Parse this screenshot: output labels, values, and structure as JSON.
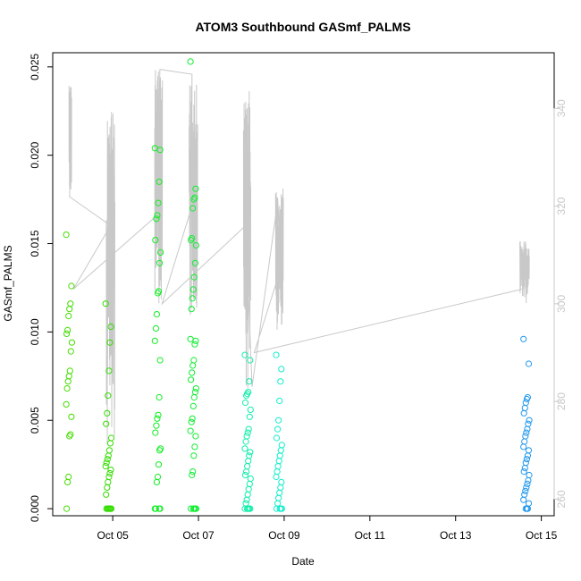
{
  "chart_data": {
    "type": "scatter",
    "title": "ATOM3 Southbound GASmf_PALMS",
    "xlabel": "Date",
    "ylabel": "GASmf_PALMS",
    "x_range_days": [
      3.6,
      15.3
    ],
    "ylim": [
      -0.0004,
      0.0258
    ],
    "y2lim": [
      256.6,
      351.4
    ],
    "x_ticks": [
      {
        "label": "Oct 05",
        "day": 5
      },
      {
        "label": "Oct 07",
        "day": 7
      },
      {
        "label": "Oct 09",
        "day": 9
      },
      {
        "label": "Oct 11",
        "day": 11
      },
      {
        "label": "Oct 13",
        "day": 13
      },
      {
        "label": "Oct 15",
        "day": 15
      }
    ],
    "y_ticks": [
      {
        "label": "0.000",
        "value": 0.0
      },
      {
        "label": "0.005",
        "value": 0.005
      },
      {
        "label": "0.010",
        "value": 0.01
      },
      {
        "label": "0.015",
        "value": 0.015
      },
      {
        "label": "0.020",
        "value": 0.02
      },
      {
        "label": "0.025",
        "value": 0.025
      }
    ],
    "y2_ticks": [
      {
        "label": "260",
        "value": 260
      },
      {
        "label": "280",
        "value": 280
      },
      {
        "label": "300",
        "value": 300
      },
      {
        "label": "320",
        "value": 320
      },
      {
        "label": "340",
        "value": 340
      }
    ],
    "colors": {
      "axis": "#000000",
      "secondary_axis": "#c8c8c8",
      "secondary_line": "#c8c8c8"
    },
    "scatter_groups": [
      {
        "day": 3.98,
        "color": "#44dd00",
        "values": [
          0.0155,
          0.0126,
          0.0116,
          0.0113,
          0.0109,
          0.0101,
          0.0099,
          0.0094,
          0.0089,
          0.0078,
          0.0075,
          0.0072,
          0.0068,
          0.0059,
          0.0052,
          0.0042,
          0.0041,
          0.0018,
          0.0015,
          0.0
        ]
      },
      {
        "day": 4.9,
        "color": "#33dd00",
        "values": [
          0.0116,
          0.0103,
          0.0094,
          0.0078,
          0.0064,
          0.0054,
          0.0048,
          0.004,
          0.0037,
          0.0033,
          0.003,
          0.0028,
          0.0026,
          0.0024,
          0.0022,
          0.002,
          0.0018,
          0.0015,
          0.0012,
          0.0008,
          0.0,
          0.0,
          0.0,
          0.0,
          0.0,
          0.0
        ]
      },
      {
        "day": 6.05,
        "color": "#11ee22",
        "values": [
          0.0204,
          0.0203,
          0.0185,
          0.0173,
          0.0166,
          0.0164,
          0.0152,
          0.0145,
          0.0139,
          0.0123,
          0.0122,
          0.011,
          0.0102,
          0.0095,
          0.0084,
          0.0063,
          0.0053,
          0.0051,
          0.0047,
          0.0043,
          0.0034,
          0.0033,
          0.0025,
          0.0018,
          0.0015,
          0.0,
          0.0,
          0.0,
          0.0
        ]
      },
      {
        "day": 6.88,
        "color": "#11ee33",
        "values": [
          0.0253,
          0.0181,
          0.0176,
          0.0175,
          0.017,
          0.0153,
          0.0152,
          0.0149,
          0.0139,
          0.0131,
          0.0124,
          0.0119,
          0.0113,
          0.0096,
          0.0095,
          0.0093,
          0.0084,
          0.0081,
          0.0077,
          0.0073,
          0.0068,
          0.0066,
          0.0063,
          0.0058,
          0.0051,
          0.0049,
          0.0044,
          0.0041,
          0.0035,
          0.003,
          0.0021,
          0.0019,
          0.0,
          0.0,
          0.0,
          0.0,
          0.0
        ]
      },
      {
        "day": 8.15,
        "color": "#11eeaa",
        "values": [
          0.0087,
          0.0084,
          0.0072,
          0.0066,
          0.0065,
          0.0064,
          0.006,
          0.0056,
          0.0052,
          0.0045,
          0.0043,
          0.0041,
          0.0038,
          0.0034,
          0.0032,
          0.003,
          0.0027,
          0.0024,
          0.0021,
          0.0019,
          0.0017,
          0.0014,
          0.0011,
          0.0008,
          0.0005,
          0.0003,
          0.0,
          0.0,
          0.0,
          0.0,
          0.0
        ]
      },
      {
        "day": 8.88,
        "color": "#11eecc",
        "values": [
          0.0087,
          0.0079,
          0.0072,
          0.0061,
          0.005,
          0.0045,
          0.004,
          0.0036,
          0.0033,
          0.003,
          0.0027,
          0.0024,
          0.0021,
          0.0018,
          0.0015,
          0.0012,
          0.0009,
          0.0006,
          0.0003,
          0.0,
          0.0,
          0.0,
          0.0
        ]
      },
      {
        "day": 14.65,
        "color": "#2299ee",
        "values": [
          0.0096,
          0.0082,
          0.0063,
          0.0062,
          0.006,
          0.0057,
          0.0054,
          0.005,
          0.0048,
          0.0045,
          0.0043,
          0.0041,
          0.0038,
          0.0035,
          0.0033,
          0.003,
          0.0028,
          0.0026,
          0.0023,
          0.0021,
          0.0019,
          0.0016,
          0.0014,
          0.0012,
          0.001,
          0.0008,
          0.0005,
          0.0003,
          0.0,
          0.0,
          0.0
        ]
      }
    ],
    "secondary_series": {
      "axis": "right",
      "connector_points": [
        {
          "day": 3.98,
          "value": 322
        },
        {
          "day": 4.95,
          "value": 316
        },
        {
          "day": 4.08,
          "value": 303
        },
        {
          "day": 6.02,
          "value": 318
        },
        {
          "day": 6.1,
          "value": 348
        },
        {
          "day": 6.85,
          "value": 347
        },
        {
          "day": 6.85,
          "value": 320
        },
        {
          "day": 6.15,
          "value": 300
        },
        {
          "day": 8.1,
          "value": 316
        },
        {
          "day": 8.25,
          "value": 283
        },
        {
          "day": 8.85,
          "value": 321
        },
        {
          "day": 8.95,
          "value": 308
        },
        {
          "day": 8.3,
          "value": 290
        },
        {
          "day": 14.55,
          "value": 303
        }
      ],
      "flight_segments": [
        {
          "start_day": 3.98,
          "end_day": 4.04,
          "min": 322,
          "max": 345
        },
        {
          "start_day": 4.85,
          "end_day": 5.05,
          "min": 266,
          "max": 340
        },
        {
          "start_day": 5.98,
          "end_day": 6.16,
          "min": 300,
          "max": 348
        },
        {
          "start_day": 6.78,
          "end_day": 6.98,
          "min": 296,
          "max": 346
        },
        {
          "start_day": 8.05,
          "end_day": 8.22,
          "min": 282,
          "max": 344
        },
        {
          "start_day": 8.8,
          "end_day": 8.98,
          "min": 294,
          "max": 325
        },
        {
          "start_day": 14.5,
          "end_day": 14.72,
          "min": 300,
          "max": 313
        }
      ]
    }
  }
}
